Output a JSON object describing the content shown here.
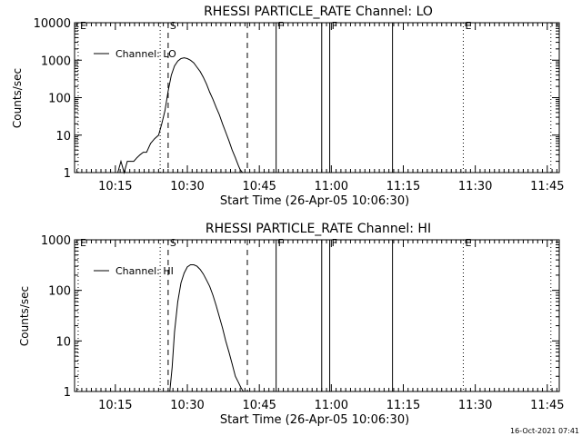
{
  "footer_timestamp": "16-Oct-2021 07:41",
  "chart_data": [
    {
      "type": "line",
      "title": "RHESSI PARTICLE_RATE Channel: LO",
      "xlabel": "Start Time (26-Apr-05 10:06:30)",
      "ylabel": "Counts/sec",
      "y_scale": "log",
      "ylim": [
        1,
        10000
      ],
      "xlim": [
        "10:06:30",
        "11:47:30"
      ],
      "x_ticks": [
        "10:15",
        "10:30",
        "10:45",
        "11:00",
        "11:15",
        "11:30",
        "11:45"
      ],
      "y_ticks": [
        "1",
        "10",
        "100",
        "1000",
        "10000"
      ],
      "legend": {
        "label": "Channel: LO",
        "position": "upper-left"
      },
      "series": [
        {
          "name": "Channel: LO",
          "x": [
            "10:13:00",
            "10:13:20",
            "10:14:00",
            "10:14:40",
            "10:15:30",
            "10:16:10",
            "10:16:50",
            "10:17:30",
            "10:18:10",
            "10:18:50",
            "10:19:30",
            "10:20:10",
            "10:20:50",
            "10:21:30",
            "10:22:20",
            "10:23:10",
            "10:24:00",
            "10:24:40",
            "10:25:20",
            "10:26:00",
            "10:26:40",
            "10:27:20",
            "10:28:00",
            "10:28:40",
            "10:29:20",
            "10:30:00",
            "10:30:40",
            "10:31:20",
            "10:32:00",
            "10:32:40",
            "10:33:20",
            "10:34:00",
            "10:34:40",
            "10:35:20",
            "10:36:00",
            "10:36:40",
            "10:37:20",
            "10:38:00",
            "10:38:40",
            "10:39:20",
            "10:40:00",
            "10:40:40",
            "10:41:00",
            "10:41:30",
            "10:41:50"
          ],
          "y": [
            1,
            1,
            1,
            1,
            1,
            2,
            1,
            2,
            2,
            2,
            2.5,
            3,
            3.5,
            3.5,
            6,
            8,
            10,
            20,
            45,
            150,
            400,
            700,
            950,
            1100,
            1150,
            1100,
            1000,
            850,
            650,
            500,
            350,
            230,
            140,
            90,
            55,
            35,
            20,
            12,
            7,
            4,
            2.5,
            1.5,
            1.2,
            1,
            1
          ]
        }
      ],
      "markers": [
        {
          "label": "E",
          "time": "10:07:15",
          "style": "dotted"
        },
        {
          "label": "",
          "time": "10:24:20",
          "style": "dotted"
        },
        {
          "label": "S",
          "time": "10:26:00",
          "style": "dashed"
        },
        {
          "label": "",
          "time": "10:42:30",
          "style": "dashed"
        },
        {
          "label": "F",
          "time": "10:48:30",
          "style": "solid"
        },
        {
          "label": "",
          "time": "10:58:00",
          "style": "solid"
        },
        {
          "label": "F",
          "time": "10:59:40",
          "style": "solid"
        },
        {
          "label": "",
          "time": "11:12:45",
          "style": "solid"
        },
        {
          "label": "E",
          "time": "11:27:30",
          "style": "dotted"
        },
        {
          "label": "",
          "time": "11:45:45",
          "style": "dotted"
        }
      ]
    },
    {
      "type": "line",
      "title": "RHESSI PARTICLE_RATE Channel: HI",
      "xlabel": "Start Time (26-Apr-05 10:06:30)",
      "ylabel": "Counts/sec",
      "y_scale": "log",
      "ylim": [
        1,
        1000
      ],
      "xlim": [
        "10:06:30",
        "11:47:30"
      ],
      "x_ticks": [
        "10:15",
        "10:30",
        "10:45",
        "11:00",
        "11:15",
        "11:30",
        "11:45"
      ],
      "y_ticks": [
        "1",
        "10",
        "100",
        "1000"
      ],
      "legend": {
        "label": "Channel: HI",
        "position": "upper-left"
      },
      "series": [
        {
          "name": "Channel: HI",
          "x": [
            "10:26:20",
            "10:26:50",
            "10:27:20",
            "10:28:00",
            "10:28:40",
            "10:29:20",
            "10:30:00",
            "10:30:40",
            "10:31:20",
            "10:32:00",
            "10:32:40",
            "10:33:20",
            "10:34:00",
            "10:34:40",
            "10:35:20",
            "10:36:00",
            "10:36:40",
            "10:37:20",
            "10:38:00",
            "10:38:40",
            "10:39:20",
            "10:40:00",
            "10:40:40",
            "10:41:10",
            "10:41:40"
          ],
          "y": [
            1,
            3,
            15,
            60,
            140,
            220,
            290,
            320,
            320,
            300,
            260,
            210,
            160,
            120,
            80,
            50,
            30,
            18,
            10,
            6,
            3.5,
            2,
            1.5,
            1.2,
            1
          ]
        }
      ],
      "markers": [
        {
          "label": "E",
          "time": "10:07:15",
          "style": "dotted"
        },
        {
          "label": "",
          "time": "10:24:20",
          "style": "dotted"
        },
        {
          "label": "S",
          "time": "10:26:00",
          "style": "dashed"
        },
        {
          "label": "",
          "time": "10:42:30",
          "style": "dashed"
        },
        {
          "label": "F",
          "time": "10:48:30",
          "style": "solid"
        },
        {
          "label": "",
          "time": "10:58:00",
          "style": "solid"
        },
        {
          "label": "F",
          "time": "10:59:40",
          "style": "solid"
        },
        {
          "label": "",
          "time": "11:12:45",
          "style": "solid"
        },
        {
          "label": "E",
          "time": "11:27:30",
          "style": "dotted"
        },
        {
          "label": "",
          "time": "11:45:45",
          "style": "dotted"
        }
      ]
    }
  ]
}
